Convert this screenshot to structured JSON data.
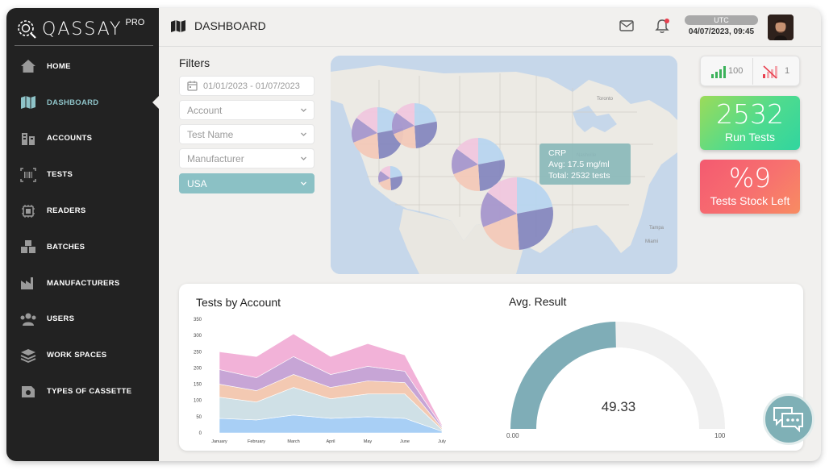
{
  "app": {
    "logo_text": "QASSAY",
    "logo_sup": "PRO"
  },
  "sidebar": {
    "items": [
      {
        "label": "HOME",
        "icon": "home-icon"
      },
      {
        "label": "DASHBOARD",
        "icon": "map-icon",
        "active": true
      },
      {
        "label": "ACCOUNTS",
        "icon": "accounts-icon"
      },
      {
        "label": "TESTS",
        "icon": "barcode-icon"
      },
      {
        "label": "READERS",
        "icon": "chip-icon"
      },
      {
        "label": "BATCHES",
        "icon": "boxes-icon"
      },
      {
        "label": "MANUFACTURERS",
        "icon": "factory-icon"
      },
      {
        "label": "USERS",
        "icon": "users-icon"
      },
      {
        "label": "WORK SPACES",
        "icon": "layers-icon"
      },
      {
        "label": "TYPES OF CASSETTE",
        "icon": "cassette-icon"
      }
    ]
  },
  "header": {
    "title": "DASHBOARD",
    "timezone": "UTC",
    "datetime": "04/07/2023, 09:45"
  },
  "filters": {
    "title": "Filters",
    "date_range": "01/01/2023 - 01/07/2023",
    "account_placeholder": "Account",
    "test_name_placeholder": "Test Name",
    "manufacturer_placeholder": "Manufacturer",
    "country_value": "USA"
  },
  "map": {
    "tooltip": {
      "title": "CRP",
      "avg": "Avg: 17.5 mg/ml",
      "total": "Total: 2532 tests"
    }
  },
  "signals": {
    "good": "100",
    "bad": "1"
  },
  "kpis": {
    "run_tests_value": "2532",
    "run_tests_label": "Run Tests",
    "stock_value": "%9",
    "stock_label": "Tests Stock Left"
  },
  "colors": {
    "accent": "#8bc1c5",
    "sidebar_bg": "#222222",
    "series": [
      "#a8cff5",
      "#cfe0e6",
      "#f3c9b2",
      "#c7a5d6",
      "#f2b2d8"
    ]
  },
  "chart_data": [
    {
      "type": "area",
      "title": "Tests by Account",
      "categories": [
        "January",
        "February",
        "March",
        "April",
        "May",
        "June",
        "July"
      ],
      "stacked": true,
      "ylim": [
        0,
        350
      ],
      "yticks": [
        "0",
        "50",
        "100",
        "150",
        "200",
        "250",
        "300",
        "350"
      ],
      "series": [
        {
          "values": [
            45,
            40,
            55,
            45,
            50,
            45,
            5
          ]
        },
        {
          "values": [
            65,
            55,
            85,
            60,
            70,
            75,
            5
          ]
        },
        {
          "values": [
            40,
            35,
            40,
            35,
            40,
            35,
            5
          ]
        },
        {
          "values": [
            45,
            40,
            55,
            40,
            45,
            35,
            5
          ]
        },
        {
          "values": [
            55,
            65,
            70,
            55,
            70,
            50,
            5
          ]
        }
      ]
    },
    {
      "type": "gauge",
      "title": "Avg. Result",
      "value": 49.33,
      "value_label": "49.33",
      "min": 0,
      "max": 100,
      "min_label": "0.00",
      "max_label": "100"
    }
  ]
}
